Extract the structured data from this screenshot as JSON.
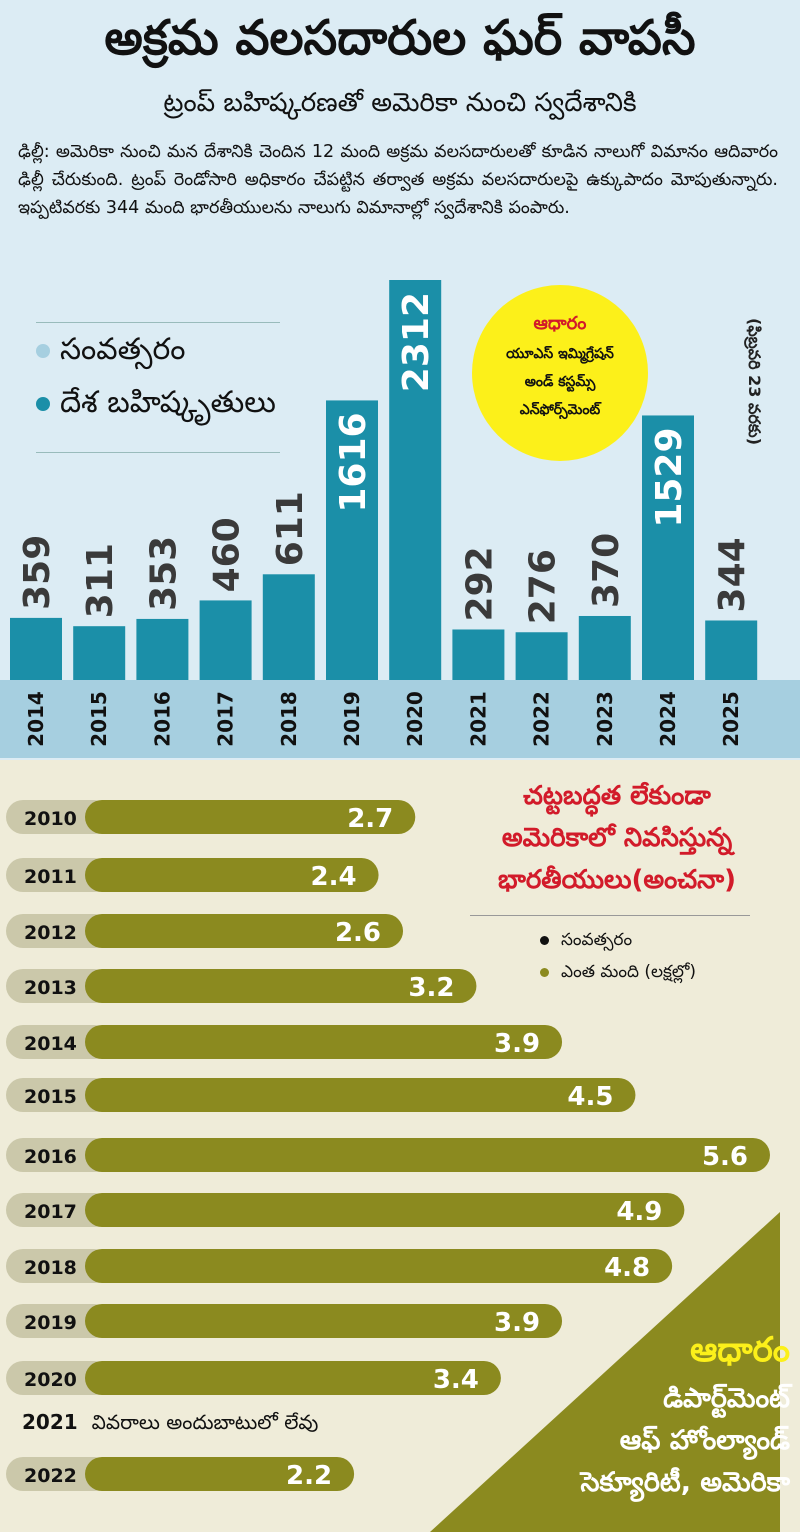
{
  "header": {
    "title": "అక్రమ వలసదారుల ఘర్ వాపసీ",
    "subtitle": "ట్రంప్ బహిష్కరణతో అమెరికా నుంచి స్వదేశానికి",
    "body": "ఢిల్లీ: అమెరికా నుంచి మన దేశానికి చెందిన 12 మంది అక్రమ వలసదారులతో కూడిన నాలుగో విమానం ఆదివారం ఢిల్లీ చేరుకుంది. ట్రంప్ రెండోసారి అధికారం చేపట్టిన తర్వాత అక్రమ వలసదారులపై ఉక్కుపాదం మోపుతున్నారు. ఇప్పటివరకు 344 మంది భారతీయులను నాలుగు విమానాల్లో స్వదేశానికి పంపారు."
  },
  "colors": {
    "top_bg": "#dcecf4",
    "bar": "#1b8fa8",
    "year_strip": "#a6cfe0",
    "olive": "#8b8a1f",
    "pill": "#cbc8aa",
    "red": "#d21b2a",
    "yellow": "#fcf01a"
  },
  "chart1": {
    "legend": {
      "year": "సంవత్సరం",
      "value": "దేశ బహిష్కృతులు"
    },
    "source_label": "ఆధారం",
    "source_lines": [
      "యూఎస్ ఇమ్మిగ్రేషన్",
      "అండ్ కస్టమ్స్",
      "ఎన్‌ఫోర్స్‌మెంట్"
    ],
    "note": "(ఫిబ్రవరి 23 వరకు)"
  },
  "chart2": {
    "title_lines": [
      "చట్టబద్ధత లేకుండా",
      "అమెరికాలో నివసిస్తున్న",
      "భారతీయులు(అంచనా)"
    ],
    "legend": {
      "year": "సంవత్సరం",
      "value": "ఎంత మంది (లక్షల్లో)"
    },
    "source_label": "ఆధారం",
    "source_lines": [
      "డిపార్ట్‌మెంట్",
      "ఆఫ్ హోంల్యాండ్",
      "సెక్యూరిటీ, అమెరికా"
    ],
    "no_data_year": "2021",
    "no_data_text": "వివరాలు అందుబాటులో లేవు"
  },
  "chart_data": [
    {
      "type": "bar",
      "categories": [
        "2014",
        "2015",
        "2016",
        "2017",
        "2018",
        "2019",
        "2020",
        "2021",
        "2022",
        "2023",
        "2024",
        "2025"
      ],
      "values": [
        359,
        311,
        353,
        460,
        611,
        1616,
        2312,
        292,
        276,
        370,
        1529,
        344
      ],
      "ylim": [
        0,
        2400
      ]
    },
    {
      "type": "bar",
      "orientation": "horizontal",
      "categories": [
        "2010",
        "2011",
        "2012",
        "2013",
        "2014",
        "2015",
        "2016",
        "2017",
        "2018",
        "2019",
        "2020",
        "2022"
      ],
      "values": [
        2.7,
        2.4,
        2.6,
        3.2,
        3.9,
        4.5,
        5.6,
        4.9,
        4.8,
        3.9,
        3.4,
        2.2
      ],
      "value_labels": [
        "2.7",
        "2.4",
        "2.6",
        "3.2",
        "3.9",
        "4.5",
        "5.6",
        "4.9",
        "4.8",
        "3.9",
        "3.4",
        "2.2"
      ],
      "xlim": [
        0,
        5.6
      ]
    }
  ]
}
